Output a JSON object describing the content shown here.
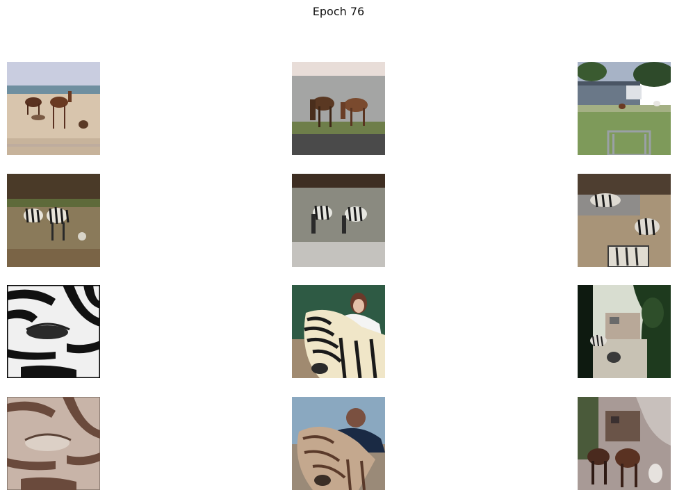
{
  "figure": {
    "title": "Epoch 76"
  },
  "grid": {
    "rows": 4,
    "cols": 3,
    "tiles": [
      {
        "row": 0,
        "col": 0,
        "subject": "horses-on-beach"
      },
      {
        "row": 0,
        "col": 1,
        "subject": "horses-grazing-by-sea"
      },
      {
        "row": 0,
        "col": 2,
        "subject": "horses-at-farm"
      },
      {
        "row": 1,
        "col": 0,
        "subject": "zebras-on-beach-generated"
      },
      {
        "row": 1,
        "col": 1,
        "subject": "zebras-grazing-generated"
      },
      {
        "row": 1,
        "col": 2,
        "subject": "zebras-at-farm-generated"
      },
      {
        "row": 2,
        "col": 0,
        "subject": "zebra-eye-closeup"
      },
      {
        "row": 2,
        "col": 1,
        "subject": "woman-with-zebra"
      },
      {
        "row": 2,
        "col": 2,
        "subject": "zebra-near-trees"
      },
      {
        "row": 3,
        "col": 0,
        "subject": "eye-closeup-generated-horse"
      },
      {
        "row": 3,
        "col": 1,
        "subject": "woman-with-horse-generated"
      },
      {
        "row": 3,
        "col": 2,
        "subject": "horses-near-trees-generated"
      }
    ]
  }
}
